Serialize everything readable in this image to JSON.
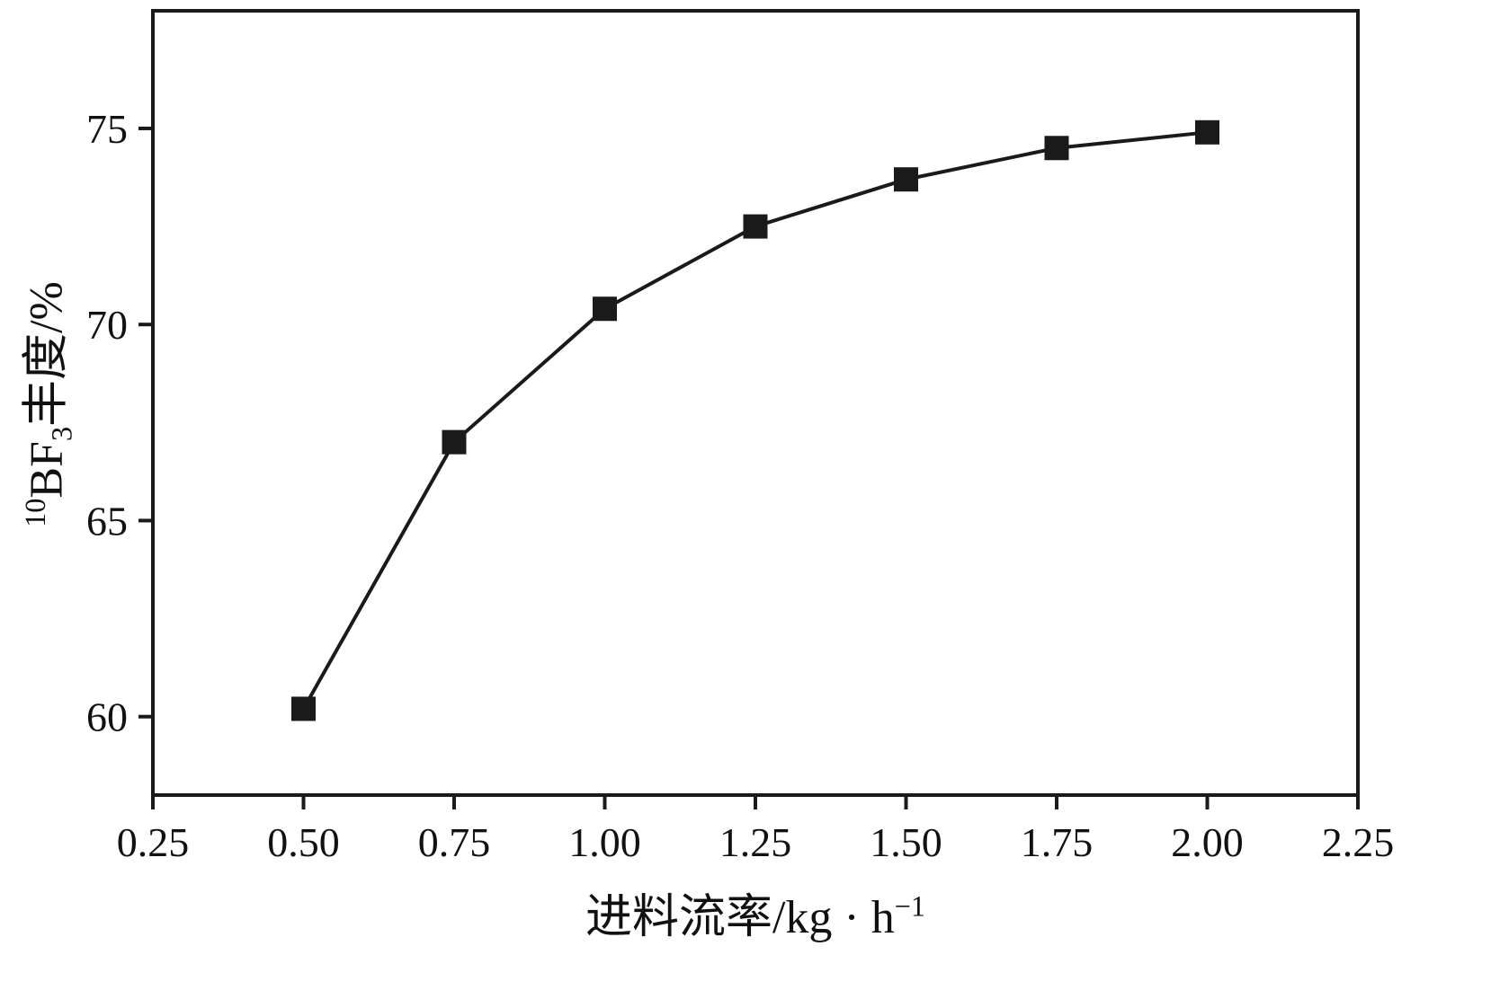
{
  "chart_data": {
    "type": "line",
    "x": [
      0.5,
      0.75,
      1.0,
      1.25,
      1.5,
      1.75,
      2.0
    ],
    "y": [
      60.2,
      67.0,
      70.4,
      72.5,
      73.7,
      74.5,
      74.9
    ],
    "title": "",
    "xlabel": "进料流率/kg·h⁻¹",
    "ylabel": "¹⁰BF₃丰度/%",
    "xlabel_parts": {
      "text": "进料流率/kg · h",
      "sup": "−1"
    },
    "ylabel_parts": {
      "iso_sup": "10",
      "formula": "BF",
      "formula_sub": "3",
      "rest": "丰度/%"
    },
    "xlim": [
      0.25,
      2.25
    ],
    "ylim": [
      58,
      78
    ],
    "xticks": [
      0.25,
      0.5,
      0.75,
      1.0,
      1.25,
      1.5,
      1.75,
      2.0,
      2.25
    ],
    "xtick_labels": [
      "0.25",
      "0.50",
      "0.75",
      "1.00",
      "1.25",
      "1.50",
      "1.75",
      "2.00",
      "2.25"
    ],
    "yticks": [
      60,
      65,
      70,
      75
    ],
    "ytick_labels": [
      "60",
      "65",
      "70",
      "75"
    ],
    "grid": false,
    "legend": false,
    "marker": "square",
    "marker_size": 27,
    "line_color": "#1a1a1a",
    "axis_color": "#1a1a1a",
    "background": "#ffffff"
  }
}
